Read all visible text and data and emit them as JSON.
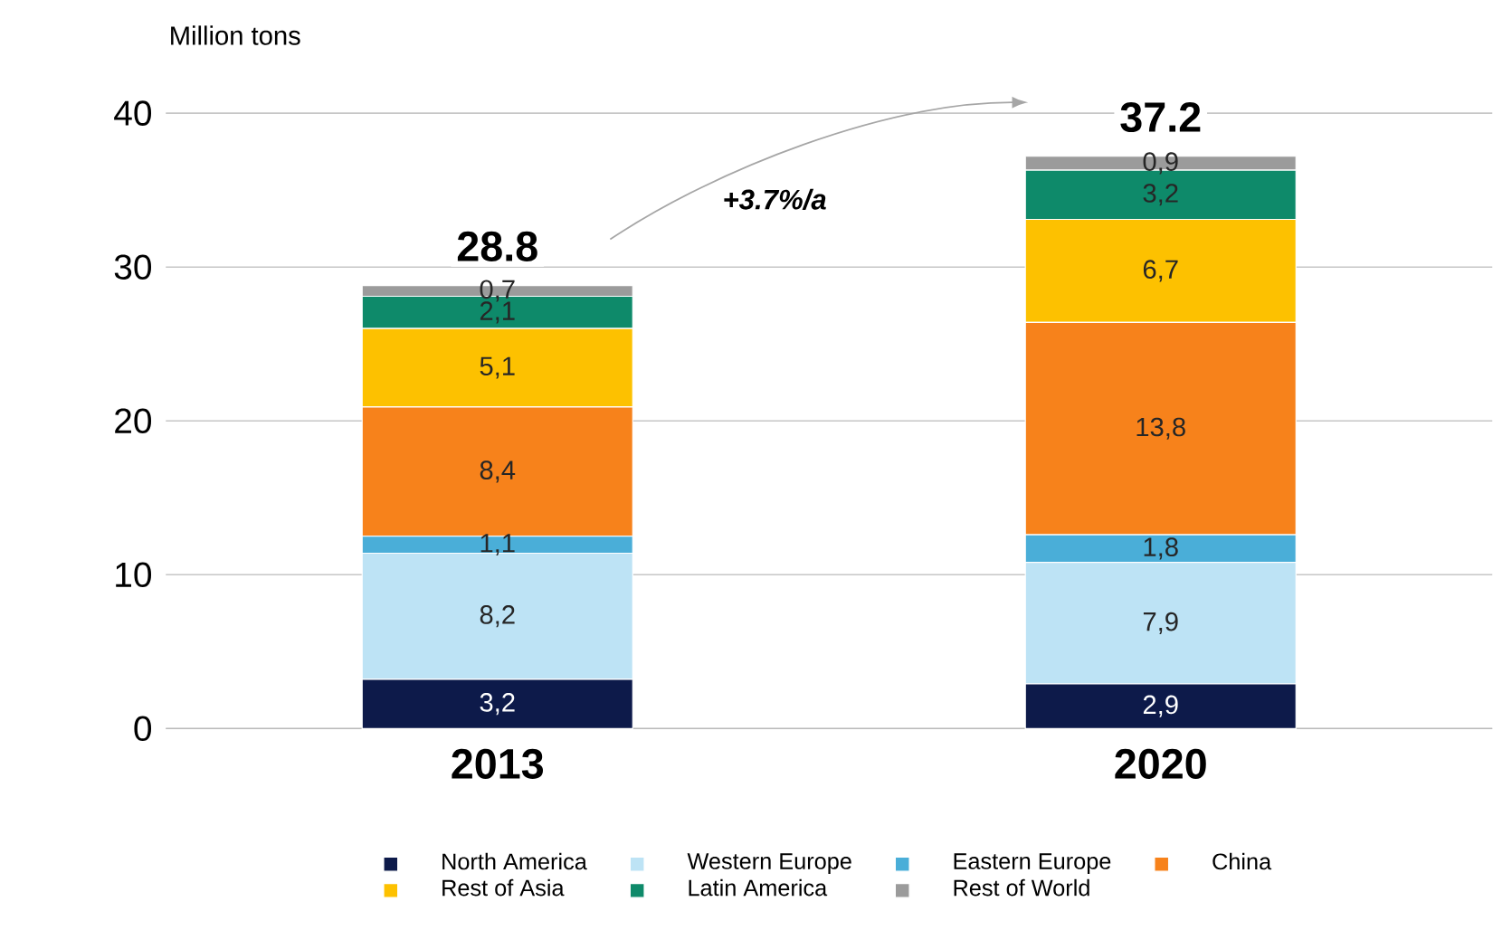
{
  "chart_data": {
    "type": "bar",
    "stacked": true,
    "ylabel": "Million tons",
    "categories": [
      "2013",
      "2020"
    ],
    "series": [
      {
        "name": "North America",
        "color": "#0d1a4a",
        "values": [
          3.2,
          2.9
        ],
        "value_labels": [
          "3,2",
          "2,9"
        ]
      },
      {
        "name": "Western Europe",
        "color": "#bde3f5",
        "values": [
          8.2,
          7.9
        ],
        "value_labels": [
          "8,2",
          "7,9"
        ]
      },
      {
        "name": "Eastern Europe",
        "color": "#4aaed8",
        "values": [
          1.1,
          1.8
        ],
        "value_labels": [
          "1,1",
          "1,8"
        ]
      },
      {
        "name": "China",
        "color": "#f7821b",
        "values": [
          8.4,
          13.8
        ],
        "value_labels": [
          "8,4",
          "13,8"
        ]
      },
      {
        "name": "Rest of Asia",
        "color": "#fdc100",
        "values": [
          5.1,
          6.7
        ],
        "value_labels": [
          "5,1",
          "6,7"
        ]
      },
      {
        "name": "Latin America",
        "color": "#0e8a6a",
        "values": [
          2.1,
          3.2
        ],
        "value_labels": [
          "2,1",
          "3,2"
        ]
      },
      {
        "name": "Rest of World",
        "color": "#9b9b9b",
        "values": [
          0.7,
          0.9
        ],
        "value_labels": [
          "0,7",
          "0,9"
        ]
      }
    ],
    "totals": [
      "28.8",
      "37.2"
    ],
    "annotations": [
      "+3.7%/a"
    ],
    "ylim": [
      0,
      40
    ],
    "yticks": [
      0,
      10,
      20,
      30,
      40
    ],
    "grid": "y",
    "legend": "bottom"
  }
}
